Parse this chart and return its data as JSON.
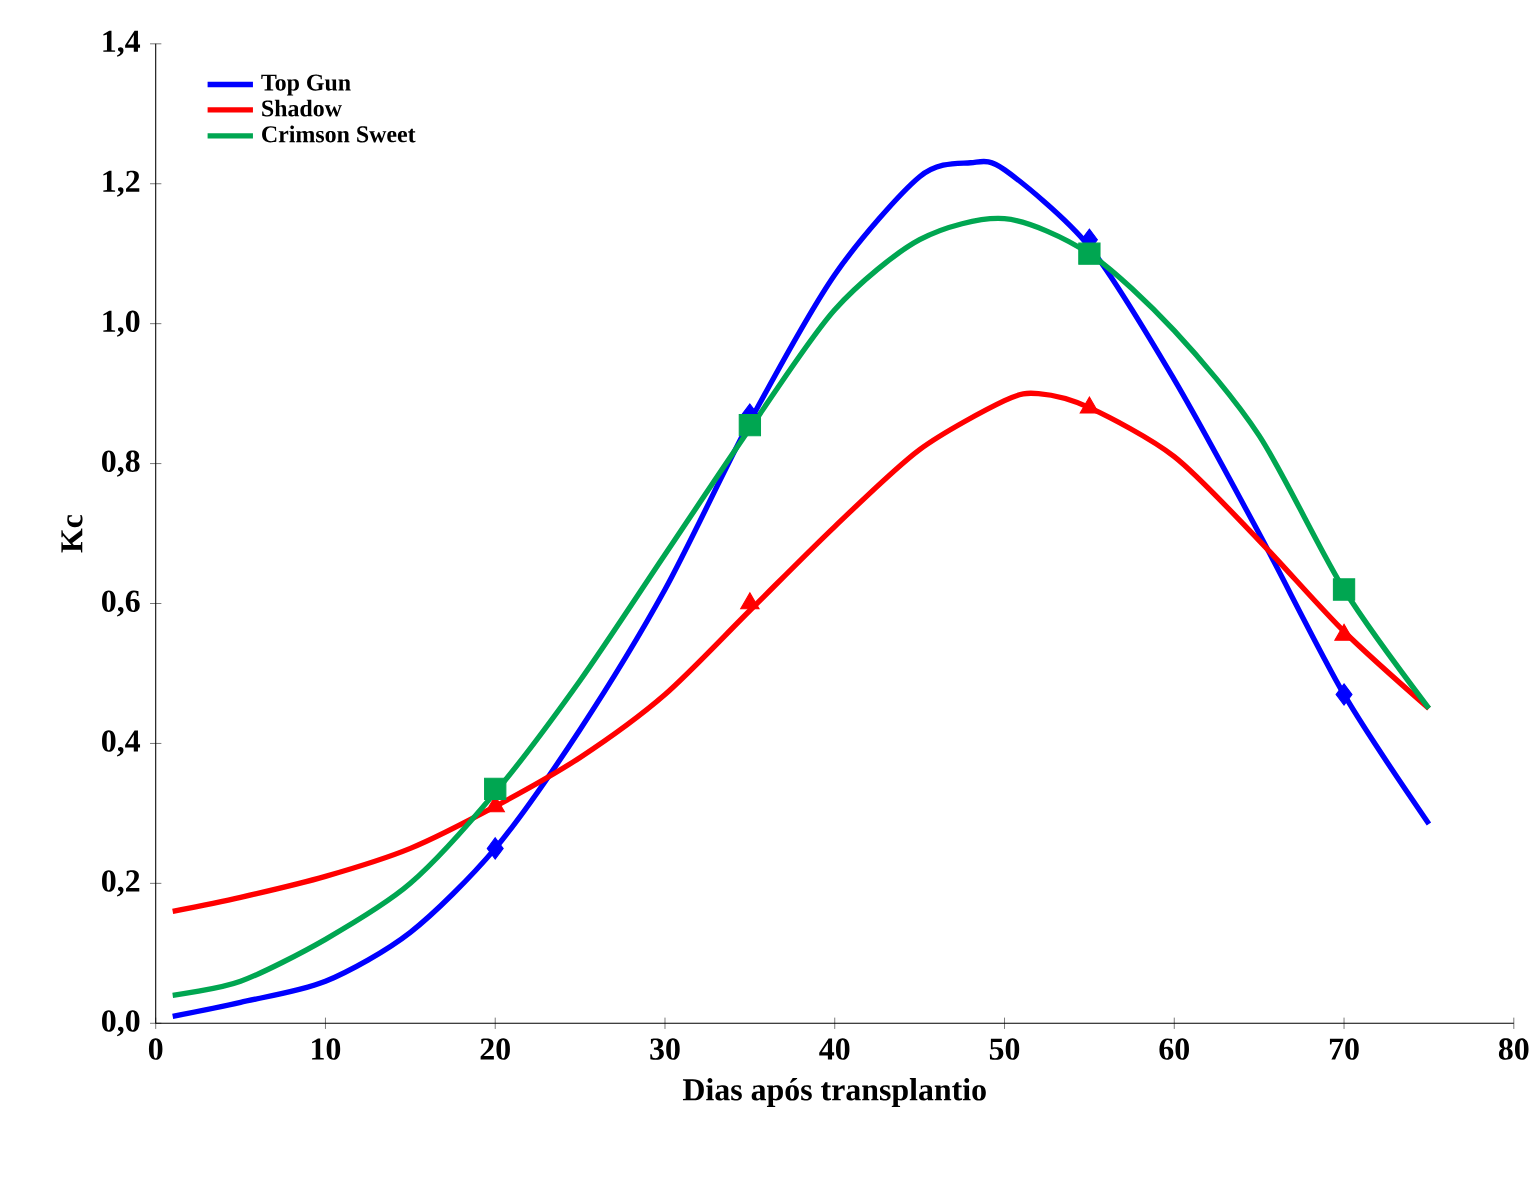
{
  "chart_data": {
    "type": "line",
    "xlabel": "Dias após transplantio",
    "ylabel": "Kc",
    "xlim": [
      0,
      80
    ],
    "ylim": [
      0,
      1.4
    ],
    "xticks": [
      0,
      10,
      20,
      30,
      40,
      50,
      60,
      70,
      80
    ],
    "yticks": [
      {
        "value": 0,
        "label": "0,0"
      },
      {
        "value": 0.2,
        "label": "0,2"
      },
      {
        "value": 0.4,
        "label": "0,4"
      },
      {
        "value": 0.6,
        "label": "0,6"
      },
      {
        "value": 0.8,
        "label": "0,8"
      },
      {
        "value": 1.0,
        "label": "1,0"
      },
      {
        "value": 1.2,
        "label": "1,2"
      },
      {
        "value": 1.4,
        "label": "1,4"
      }
    ],
    "legend": "top left",
    "grid": false,
    "series": [
      {
        "name": "Top Gun",
        "color": "#0000ff",
        "marker": "none",
        "x": [
          1,
          5,
          10,
          15,
          20,
          25,
          30,
          35,
          40,
          45,
          48,
          50,
          55,
          60,
          65,
          70,
          75
        ],
        "values": [
          0.01,
          0.03,
          0.06,
          0.13,
          0.25,
          0.42,
          0.62,
          0.86,
          1.07,
          1.21,
          1.23,
          1.22,
          1.11,
          0.92,
          0.7,
          0.47,
          0.285
        ]
      },
      {
        "name": "Shadow",
        "color": "#ff0000",
        "marker": "none",
        "x": [
          1,
          5,
          10,
          15,
          20,
          25,
          30,
          35,
          40,
          45,
          50,
          52,
          55,
          60,
          65,
          70,
          75
        ],
        "values": [
          0.16,
          0.18,
          0.21,
          0.25,
          0.31,
          0.38,
          0.47,
          0.59,
          0.71,
          0.82,
          0.89,
          0.9,
          0.88,
          0.81,
          0.69,
          0.56,
          0.45
        ]
      },
      {
        "name": "Crimson Sweet",
        "color": "#00a651",
        "marker": "none",
        "x": [
          1,
          5,
          10,
          15,
          20,
          25,
          30,
          35,
          40,
          45,
          50,
          55,
          60,
          65,
          70,
          75
        ],
        "values": [
          0.04,
          0.06,
          0.12,
          0.2,
          0.33,
          0.49,
          0.67,
          0.85,
          1.02,
          1.12,
          1.15,
          1.1,
          0.99,
          0.84,
          0.62,
          0.45
        ]
      },
      {
        "type": "scatter",
        "color": "#0000ff",
        "marker": "diamond",
        "x": [
          20,
          35,
          55,
          70
        ],
        "values": [
          0.25,
          0.87,
          1.12,
          0.47
        ]
      },
      {
        "type": "scatter",
        "color": "#ff0000",
        "marker": "triangle",
        "x": [
          20,
          35,
          55,
          70
        ],
        "values": [
          0.31,
          0.6,
          0.88,
          0.555
        ]
      },
      {
        "type": "scatter",
        "color": "#00a651",
        "marker": "square",
        "x": [
          20,
          35,
          55,
          70
        ],
        "values": [
          0.335,
          0.855,
          1.1,
          0.62
        ]
      }
    ]
  }
}
